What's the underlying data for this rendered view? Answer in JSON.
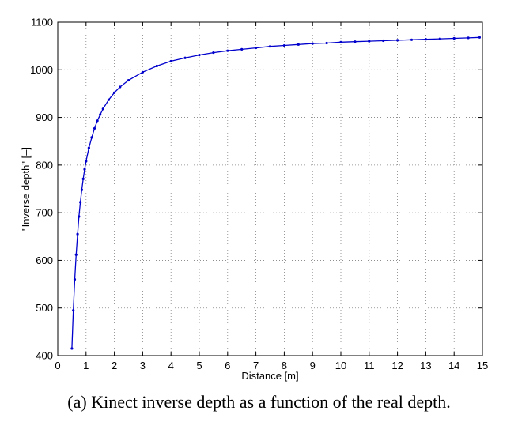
{
  "chart_data": {
    "type": "line",
    "xlabel": "Distance [m]",
    "ylabel": "\"Inverse depth\" [–]",
    "xlim": [
      0,
      15
    ],
    "ylim": [
      400,
      1100
    ],
    "xticks": [
      0,
      1,
      2,
      3,
      4,
      5,
      6,
      7,
      8,
      9,
      10,
      11,
      12,
      13,
      14,
      15
    ],
    "yticks": [
      400,
      500,
      600,
      700,
      800,
      900,
      1000,
      1100
    ],
    "grid": true,
    "series": [
      {
        "color": "#0000cc",
        "marker": "dot",
        "x": [
          0.5,
          0.55,
          0.6,
          0.65,
          0.7,
          0.75,
          0.8,
          0.85,
          0.9,
          0.95,
          1.0,
          1.1,
          1.2,
          1.3,
          1.4,
          1.5,
          1.6,
          1.8,
          2.0,
          2.2,
          2.5,
          3.0,
          3.5,
          4.0,
          4.5,
          5.0,
          5.5,
          6.0,
          6.5,
          7.0,
          7.5,
          8.0,
          8.5,
          9.0,
          9.5,
          10.0,
          10.5,
          11.0,
          11.5,
          12.0,
          12.5,
          13.0,
          13.5,
          14.0,
          14.5,
          14.9
        ],
        "y": [
          415,
          495,
          560,
          612,
          655,
          692,
          722,
          748,
          771,
          791,
          808,
          836,
          858,
          877,
          893,
          906,
          918,
          937,
          952,
          964,
          978,
          995,
          1008,
          1018,
          1025,
          1031,
          1036,
          1040,
          1043,
          1046,
          1049,
          1051,
          1053,
          1055,
          1056,
          1058,
          1059,
          1060,
          1061,
          1062,
          1063,
          1064,
          1065,
          1066,
          1067,
          1068
        ]
      }
    ]
  },
  "caption": "(a)  Kinect inverse depth as a function of the real depth."
}
